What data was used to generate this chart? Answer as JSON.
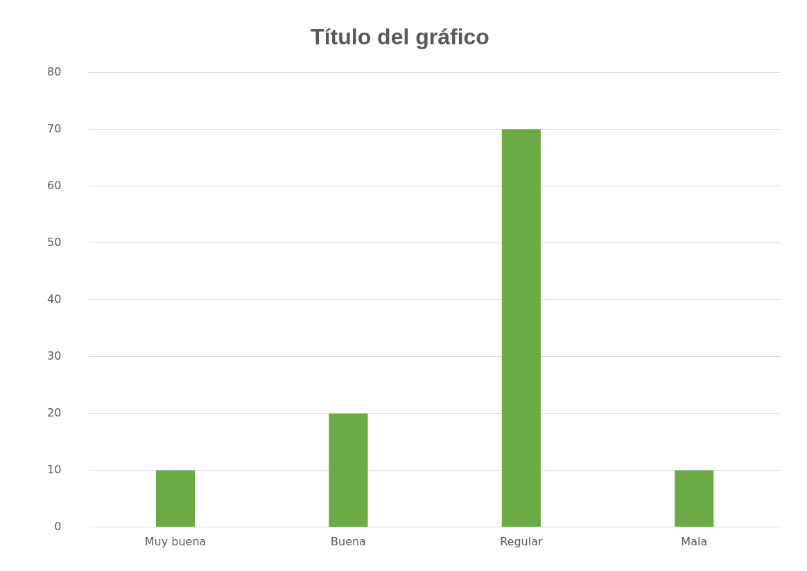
{
  "chart_data": {
    "type": "bar",
    "title": "Título del gráfico",
    "categories": [
      "Muy buena",
      "Buena",
      "Regular",
      "Mala"
    ],
    "values": [
      10,
      20,
      70,
      10
    ],
    "color": "#6aab45",
    "ylim": [
      0,
      80
    ],
    "yticks": [
      0,
      10,
      20,
      30,
      40,
      50,
      60,
      70,
      80
    ],
    "grid": "y",
    "legend": false
  }
}
